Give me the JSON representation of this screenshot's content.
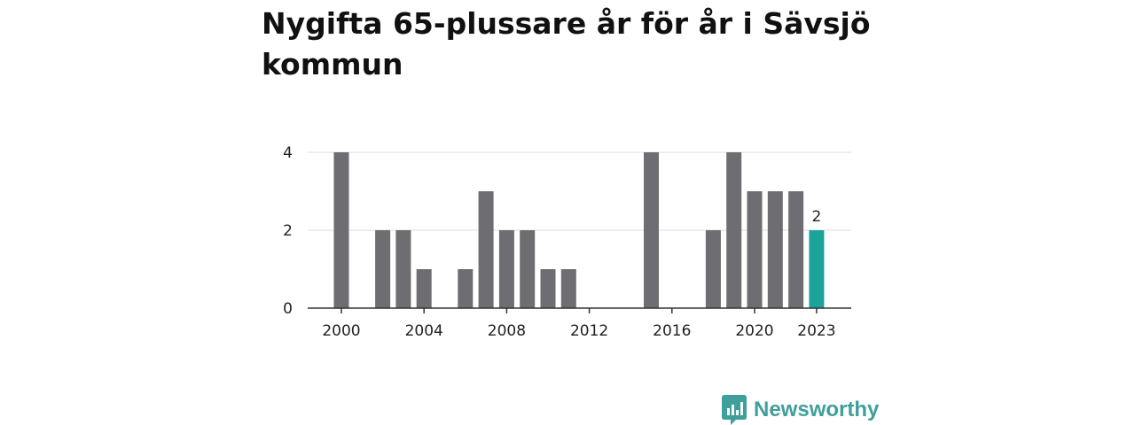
{
  "chart_data": {
    "type": "bar",
    "title": "Nygifta 65-plussare år för år i Sävsjö kommun",
    "xlabel": "",
    "ylabel": "",
    "years": [
      2000,
      2001,
      2002,
      2003,
      2004,
      2005,
      2006,
      2007,
      2008,
      2009,
      2010,
      2011,
      2012,
      2013,
      2014,
      2015,
      2016,
      2017,
      2018,
      2019,
      2020,
      2021,
      2022,
      2023
    ],
    "values": [
      4,
      0,
      2,
      2,
      1,
      0,
      1,
      3,
      2,
      2,
      1,
      1,
      0,
      0,
      0,
      4,
      0,
      0,
      2,
      4,
      3,
      3,
      3,
      2
    ],
    "x_ticks": [
      "2000",
      "2004",
      "2008",
      "2012",
      "2016",
      "2020",
      "2023"
    ],
    "y_ticks": [
      "0",
      "2",
      "4"
    ],
    "ylim": [
      0,
      4
    ],
    "highlight": {
      "category": "2023",
      "label": "2"
    },
    "colors": {
      "bar": "#6e6d72",
      "highlight": "#1ba39c",
      "grid": "#dddddd",
      "axis": "#333333"
    }
  },
  "brand": {
    "name": "Newsworthy",
    "icon": "newsworthy-logo-icon",
    "color": "#3f9f9a"
  }
}
